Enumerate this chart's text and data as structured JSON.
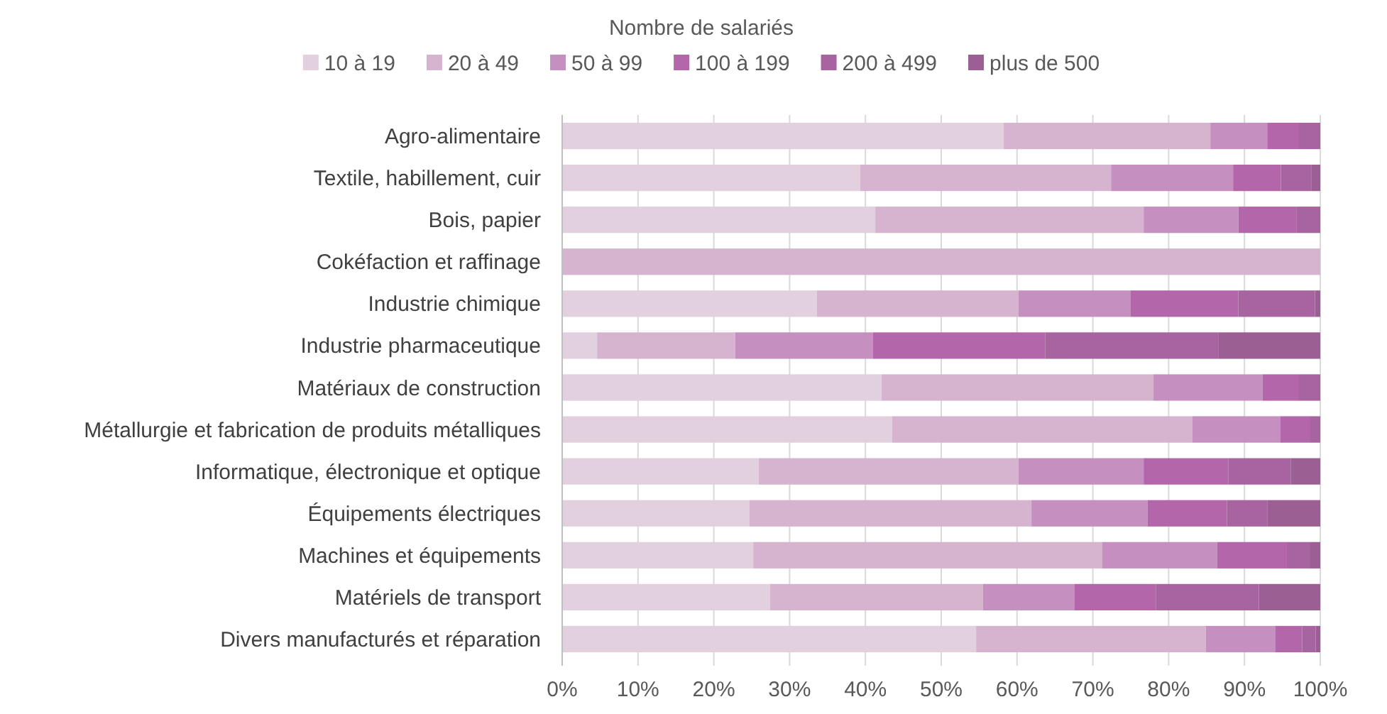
{
  "chart_data": {
    "type": "bar",
    "orientation": "horizontal",
    "stacked": true,
    "legend_title": "Nombre de salariés",
    "legend": "top",
    "grid": "x",
    "categories": [
      "Agro-alimentaire",
      "Textile, habillement, cuir",
      "Bois, papier",
      "Cokéfaction et raffinage",
      "Industrie chimique",
      "Industrie pharmaceutique",
      "Matériaux de construction",
      "Métallurgie et fabrication de produits métalliques",
      "Informatique, électronique et optique",
      "Équipements électriques",
      "Machines et équipements",
      "Matériels de transport",
      "Divers manufacturés et réparation"
    ],
    "xlim": [
      0,
      100
    ],
    "xticks": [
      {
        "value": 0,
        "label": "0%"
      },
      {
        "value": 10,
        "label": "10%"
      },
      {
        "value": 20,
        "label": "20%"
      },
      {
        "value": 30,
        "label": "30%"
      },
      {
        "value": 40,
        "label": "40%"
      },
      {
        "value": 50,
        "label": "50%"
      },
      {
        "value": 60,
        "label": "60%"
      },
      {
        "value": 70,
        "label": "70%"
      },
      {
        "value": 80,
        "label": "80%"
      },
      {
        "value": 90,
        "label": "90%"
      },
      {
        "value": 100,
        "label": "100%"
      }
    ],
    "series": [
      {
        "name": "10 à 19",
        "color": "#e2d0df",
        "values": [
          58.2,
          39.3,
          41.3,
          null,
          33.6,
          4.6,
          42.1,
          43.5,
          25.9,
          24.7,
          25.2,
          27.4,
          54.6
        ]
      },
      {
        "name": "20 à 49",
        "color": "#d6b4cf",
        "values": [
          27.3,
          33.1,
          35.4,
          100,
          26.6,
          18.2,
          35.9,
          39.6,
          34.3,
          37.2,
          46.0,
          28.1,
          30.3
        ]
      },
      {
        "name": "50 à 99",
        "color": "#c590bf",
        "values": [
          7.5,
          16.1,
          12.5,
          null,
          14.8,
          18.2,
          14.4,
          11.6,
          16.5,
          15.3,
          15.2,
          12.1,
          9.2
        ]
      },
      {
        "name": "100 à 199",
        "color": "#b466ab",
        "values": [
          4.1,
          6.3,
          7.7,
          null,
          14.2,
          22.7,
          4.7,
          3.9,
          11.2,
          10.5,
          9.2,
          10.7,
          3.5
        ]
      },
      {
        "name": "200 à 499",
        "color": "#a864a0",
        "values": [
          2.9,
          4.0,
          3.1,
          null,
          10.1,
          22.9,
          2.9,
          1.4,
          8.2,
          5.3,
          3.0,
          13.6,
          1.8
        ]
      },
      {
        "name": "plus de 500",
        "color": "#9b5f94",
        "values": [
          null,
          1.2,
          null,
          null,
          0.7,
          13.4,
          null,
          null,
          3.9,
          7.0,
          1.4,
          8.1,
          0.6
        ]
      }
    ]
  }
}
